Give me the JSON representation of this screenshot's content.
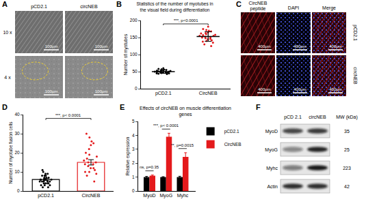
{
  "panel_letters": [
    "A",
    "B",
    "C",
    "D",
    "E",
    "F"
  ],
  "panel_A": {
    "columns": [
      "pCD2.1",
      "circNEB"
    ],
    "rows": [
      "10 x",
      "4 x"
    ],
    "scale_bar": "100μm"
  },
  "chart_data": [
    {
      "type": "scatter",
      "title": "Statistics of the number of myotubes in the visual field during differentiation",
      "y_label": "Number of myotubes",
      "categories": [
        "pCD2.1",
        "CircNEB"
      ],
      "colors": [
        "#000000",
        "#e41a1c"
      ],
      "points": [
        [
          45,
          48,
          50,
          52,
          55,
          47,
          44,
          53,
          58,
          49,
          51,
          46,
          54,
          50,
          57,
          43,
          52,
          48,
          56,
          50,
          47,
          53,
          49,
          60,
          45
        ],
        [
          150,
          165,
          140,
          155,
          172,
          135,
          160,
          148,
          182,
          125,
          158,
          145,
          168,
          152,
          138,
          175,
          162,
          142,
          155,
          130,
          170,
          150,
          146,
          163,
          157
        ]
      ],
      "means": [
        50,
        153
      ],
      "errors": [
        5,
        14
      ],
      "annotations": [
        "***, p<0.0001"
      ],
      "ylim": [
        0,
        200
      ],
      "yticks": [
        0,
        50,
        100,
        150,
        200
      ]
    },
    {
      "type": "bar",
      "y_label": "Number of myotube fusion cells",
      "categories": [
        "pCD2.1",
        "CircNEB"
      ],
      "colors": [
        "#000000",
        "#e41a1c"
      ],
      "values": [
        6,
        15
      ],
      "errors": [
        0.5,
        1.4
      ],
      "points": [
        [
          2,
          3,
          4,
          5,
          6,
          7,
          8,
          5,
          6,
          4,
          3,
          9,
          10,
          6,
          5,
          7,
          8,
          4,
          2,
          6,
          11,
          5,
          7,
          3,
          6,
          8,
          4,
          9,
          5,
          6
        ],
        [
          5,
          8,
          10,
          12,
          14,
          15,
          16,
          18,
          20,
          22,
          25,
          28,
          30,
          13,
          11,
          9,
          17,
          19,
          15,
          14,
          24,
          26,
          12,
          10
        ]
      ],
      "annotations": [
        "***, p< 0.0001"
      ],
      "ylim": [
        0,
        40
      ],
      "yticks": [
        0,
        10,
        20,
        30,
        40
      ]
    },
    {
      "type": "bar",
      "title": "Effects of circNEB on muscle differentiation genes",
      "y_label": "Relative expression",
      "categories": [
        "MyoD",
        "MyoG",
        "Myhc"
      ],
      "series": [
        {
          "name": "pCD2.1",
          "color": "#000000",
          "values": [
            1,
            1,
            1
          ],
          "errors": [
            0.05,
            0.03,
            0.06
          ]
        },
        {
          "name": "CircNEB",
          "color": "#e41a1c",
          "values": [
            1.1,
            3.9,
            2.45
          ],
          "errors": [
            0.05,
            0.25,
            0.3
          ]
        }
      ],
      "annotations": [
        "ns, p=0.35",
        "***, p< 0.0001",
        "**, p=0.0015"
      ],
      "legend": "right",
      "ylim": [
        0,
        5
      ],
      "yticks": [
        0,
        1,
        2,
        3,
        4,
        5
      ]
    }
  ],
  "panel_C": {
    "columns": [
      "CircNEB peptide",
      "DAPI",
      "Merge"
    ],
    "rows": [
      "pCD2.1",
      "circNEB"
    ],
    "scale_bar": "400μm"
  },
  "panel_F": {
    "columns": [
      "pCD 2.1",
      "circNEB"
    ],
    "mw_header": "MW (kDa)",
    "rows": [
      {
        "label": "MyoD",
        "mw": 35,
        "bands": [
          0.75,
          0.8
        ]
      },
      {
        "label": "MyoG",
        "mw": 25,
        "bands": [
          0.45,
          0.9
        ]
      },
      {
        "label": "Myhc",
        "mw": 223,
        "bands": [
          0.5,
          0.95
        ]
      },
      {
        "label": "Actin",
        "mw": 42,
        "bands": [
          0.85,
          0.85
        ]
      }
    ]
  }
}
